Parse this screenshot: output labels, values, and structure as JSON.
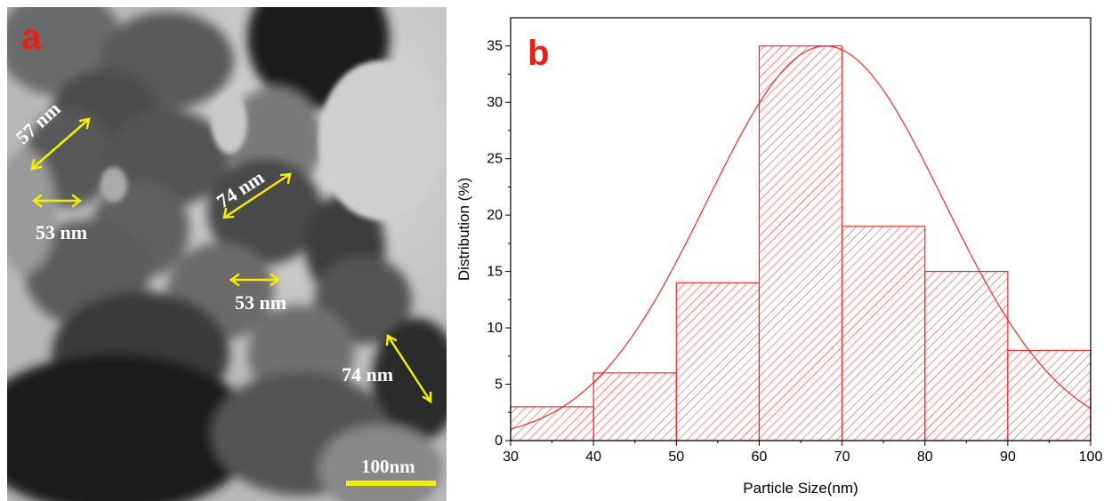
{
  "panel_a": {
    "label": "a",
    "size_labels": [
      "57 nm",
      "53 nm",
      "74 nm",
      "53 nm",
      "74 nm"
    ],
    "scale_bar_label": "100nm",
    "scale_bar_color": "#f2ee00",
    "arrow_color": "#f2ee00"
  },
  "panel_b": {
    "label": "b"
  },
  "label_color": "#e8201a",
  "chart_data": {
    "type": "bar",
    "bins": [
      [
        30,
        40
      ],
      [
        40,
        50
      ],
      [
        50,
        60
      ],
      [
        60,
        70
      ],
      [
        70,
        80
      ],
      [
        80,
        90
      ],
      [
        90,
        100
      ]
    ],
    "values": [
      3,
      6,
      14,
      35,
      19,
      15,
      8
    ],
    "fit": {
      "type": "gaussian",
      "peak_x": 68,
      "peak_y": 35
    },
    "xlabel": "Particle Size(nm)",
    "ylabel": "Distribution (%)",
    "xlim": [
      30,
      100
    ],
    "ylim": [
      0,
      37.5
    ],
    "xticks": [
      30,
      40,
      50,
      60,
      70,
      80,
      90,
      100
    ],
    "yticks": [
      0,
      5,
      10,
      15,
      20,
      25,
      30,
      35
    ],
    "grid": false,
    "bar_fill": "hatched",
    "color": "#ee2a2a"
  }
}
